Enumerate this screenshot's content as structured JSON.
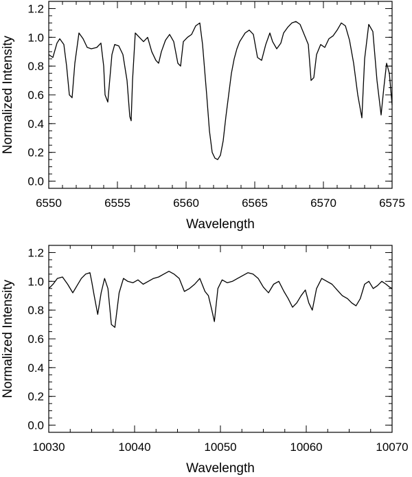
{
  "chart_data": [
    {
      "type": "line",
      "title": "",
      "xlabel": "Wavelength",
      "ylabel": "Normalized Intensity",
      "xlim": [
        6550,
        6575
      ],
      "ylim": [
        -0.05,
        1.25
      ],
      "xticks": [
        6550,
        6555,
        6560,
        6565,
        6570,
        6575
      ],
      "xtick_labels": [
        "6550",
        "6555",
        "6560",
        "6565",
        "6570",
        "6575"
      ],
      "yticks": [
        0.0,
        0.2,
        0.4,
        0.6,
        0.8,
        1.0,
        1.2
      ],
      "ytick_labels": [
        "0.0",
        "0.2",
        "0.4",
        "0.6",
        "0.8",
        "1.0",
        "1.2"
      ],
      "grid": false,
      "series": [
        {
          "x": [
            6550.0,
            6550.3,
            6550.6,
            6550.8,
            6551.1,
            6551.3,
            6551.5,
            6551.7,
            6551.9,
            6552.2,
            6552.5,
            6552.8,
            6553.1,
            6553.5,
            6553.8,
            6554.0,
            6554.1,
            6554.3,
            6554.6,
            6554.8,
            6555.1,
            6555.4,
            6555.7,
            6555.9,
            6556.0,
            6556.1,
            6556.3,
            6556.6,
            6556.9,
            6557.2,
            6557.5,
            6557.8,
            6558.0,
            6558.2,
            6558.5,
            6558.8,
            6559.1,
            6559.4,
            6559.6,
            6559.8,
            6560.1,
            6560.4,
            6560.7,
            6561.0,
            6561.2,
            6561.5,
            6561.7,
            6561.9,
            6562.1,
            6562.3,
            6562.5,
            6562.7,
            6562.9,
            6563.1,
            6563.3,
            6563.5,
            6563.7,
            6563.9,
            6564.1,
            6564.3,
            6564.6,
            6564.9,
            6565.2,
            6565.5,
            6565.8,
            6566.1,
            6566.3,
            6566.6,
            6566.9,
            6567.1,
            6567.4,
            6567.7,
            6568.0,
            6568.3,
            6568.6,
            6568.9,
            6569.1,
            6569.3,
            6569.5,
            6569.8,
            6570.1,
            6570.4,
            6570.7,
            6571.0,
            6571.3,
            6571.6,
            6571.9,
            6572.2,
            6572.5,
            6572.8,
            6573.0,
            6573.3,
            6573.6,
            6573.9,
            6574.2,
            6574.4,
            6574.6,
            6574.8,
            6575.0
          ],
          "values": [
            0.88,
            0.86,
            0.96,
            0.99,
            0.95,
            0.8,
            0.6,
            0.58,
            0.82,
            1.03,
            0.99,
            0.93,
            0.92,
            0.93,
            0.96,
            0.8,
            0.6,
            0.55,
            0.88,
            0.95,
            0.94,
            0.88,
            0.7,
            0.45,
            0.42,
            0.7,
            1.03,
            1.0,
            0.97,
            1.0,
            0.9,
            0.84,
            0.82,
            0.9,
            0.98,
            1.02,
            0.97,
            0.82,
            0.8,
            0.97,
            1.0,
            1.02,
            1.08,
            1.1,
            0.95,
            0.6,
            0.35,
            0.2,
            0.16,
            0.15,
            0.18,
            0.28,
            0.45,
            0.6,
            0.75,
            0.85,
            0.92,
            0.97,
            1.0,
            1.03,
            1.05,
            1.02,
            0.86,
            0.84,
            0.95,
            1.03,
            0.97,
            0.92,
            0.96,
            1.03,
            1.07,
            1.1,
            1.11,
            1.09,
            1.02,
            0.95,
            0.7,
            0.72,
            0.88,
            0.95,
            0.93,
            0.99,
            1.01,
            1.05,
            1.1,
            1.08,
            0.98,
            0.82,
            0.6,
            0.44,
            0.85,
            1.09,
            1.04,
            0.7,
            0.46,
            0.65,
            0.82,
            0.75,
            0.53
          ]
        }
      ]
    },
    {
      "type": "line",
      "title": "",
      "xlabel": "Wavelength",
      "ylabel": "Normalized Intensity",
      "xlim": [
        10030,
        10070
      ],
      "ylim": [
        -0.05,
        1.25
      ],
      "xticks": [
        10030,
        10040,
        10050,
        10060,
        10070
      ],
      "xtick_labels": [
        "10030",
        "10040",
        "10050",
        "10060",
        "10070"
      ],
      "yticks": [
        0.0,
        0.2,
        0.4,
        0.6,
        0.8,
        1.0,
        1.2
      ],
      "ytick_labels": [
        "0.0",
        "0.2",
        "0.4",
        "0.6",
        "0.8",
        "1.0",
        "1.2"
      ],
      "grid": false,
      "series": [
        {
          "x": [
            10030.0,
            10030.5,
            10031.0,
            10031.6,
            10032.2,
            10032.8,
            10033.3,
            10033.8,
            10034.3,
            10034.8,
            10035.0,
            10035.3,
            10035.7,
            10036.1,
            10036.5,
            10036.9,
            10037.3,
            10037.7,
            10038.2,
            10038.7,
            10039.2,
            10039.8,
            10040.4,
            10041.0,
            10041.6,
            10042.2,
            10042.8,
            10043.4,
            10044.0,
            10044.6,
            10045.2,
            10045.8,
            10046.4,
            10047.0,
            10047.6,
            10048.2,
            10048.6,
            10049.0,
            10049.3,
            10049.7,
            10050.2,
            10050.8,
            10051.4,
            10052.0,
            10052.6,
            10053.2,
            10053.8,
            10054.4,
            10055.0,
            10055.6,
            10056.2,
            10056.8,
            10057.4,
            10057.9,
            10058.4,
            10058.9,
            10059.4,
            10059.9,
            10060.3,
            10060.7,
            10061.2,
            10061.8,
            10062.4,
            10063.0,
            10063.6,
            10064.2,
            10064.8,
            10065.3,
            10065.8,
            10066.3,
            10066.8,
            10067.3,
            10067.8,
            10068.3,
            10068.8,
            10069.3,
            10069.7,
            10070.0
          ],
          "values": [
            0.95,
            0.98,
            1.02,
            1.03,
            0.98,
            0.92,
            0.97,
            1.02,
            1.05,
            1.06,
            1.0,
            0.9,
            0.77,
            0.92,
            1.02,
            0.95,
            0.7,
            0.68,
            0.92,
            1.02,
            1.0,
            0.99,
            1.01,
            0.98,
            1.0,
            1.02,
            1.03,
            1.05,
            1.07,
            1.05,
            1.02,
            0.93,
            0.95,
            0.98,
            1.02,
            0.93,
            0.9,
            0.8,
            0.72,
            0.95,
            1.01,
            0.99,
            1.0,
            1.02,
            1.04,
            1.06,
            1.05,
            1.02,
            0.96,
            0.92,
            0.98,
            1.0,
            0.93,
            0.88,
            0.82,
            0.85,
            0.9,
            0.94,
            0.85,
            0.8,
            0.95,
            1.02,
            1.0,
            0.98,
            0.94,
            0.9,
            0.88,
            0.85,
            0.83,
            0.88,
            0.98,
            1.0,
            0.95,
            0.97,
            1.0,
            0.98,
            0.96,
            0.95
          ]
        }
      ]
    }
  ]
}
